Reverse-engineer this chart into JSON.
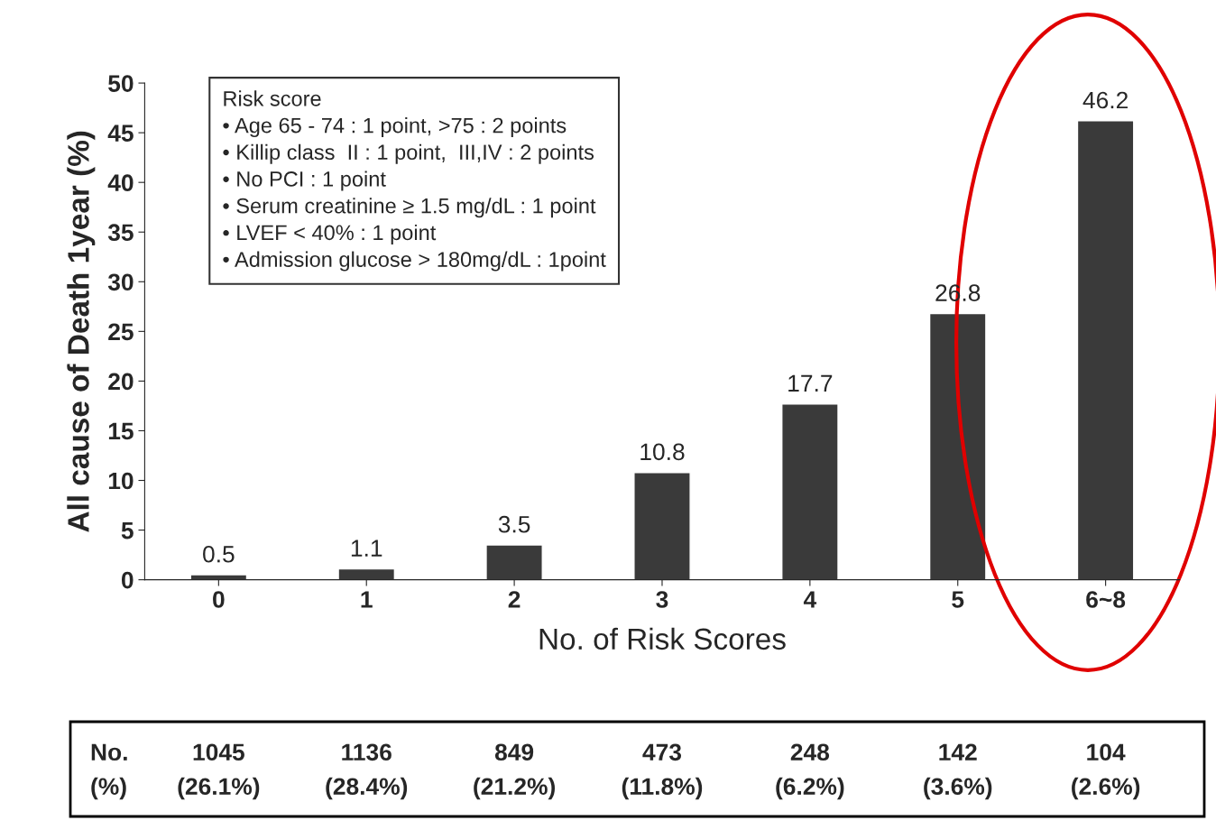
{
  "chart_data": {
    "type": "bar",
    "xlabel": "No. of Risk Scores",
    "ylabel": "All cause of Death 1year (%)",
    "categories": [
      "0",
      "1",
      "2",
      "3",
      "4",
      "5",
      "6~8"
    ],
    "values": [
      0.5,
      1.1,
      3.5,
      10.8,
      17.7,
      26.8,
      46.2
    ],
    "color": "#3a3a3a",
    "ylim": [
      0,
      50
    ],
    "yticks": [
      0,
      5,
      10,
      15,
      20,
      25,
      30,
      35,
      40,
      45,
      50
    ],
    "data_labels": true,
    "grid": false,
    "legend": false,
    "annotations": [
      "Risk score",
      "• Age 65 - 74 : 1 point, >75 : 2 points",
      "• Killip class  II : 1 point,  III,IV : 2 points",
      "• No PCI : 1 point",
      "• Serum creatinine ≥ 1.5 mg/dL : 1 point",
      "• LVEF < 40% : 1 point",
      "• Admission glucose > 180mg/dL : 1point",
      "No.\n(%)",
      "1045\n(26.1%)",
      "1136\n(28.4%)",
      "849\n(21.2%)",
      "473\n(11.8%)",
      "248\n(6.2%)",
      "142\n(3.6%)",
      "104\n(2.6%)"
    ]
  }
}
